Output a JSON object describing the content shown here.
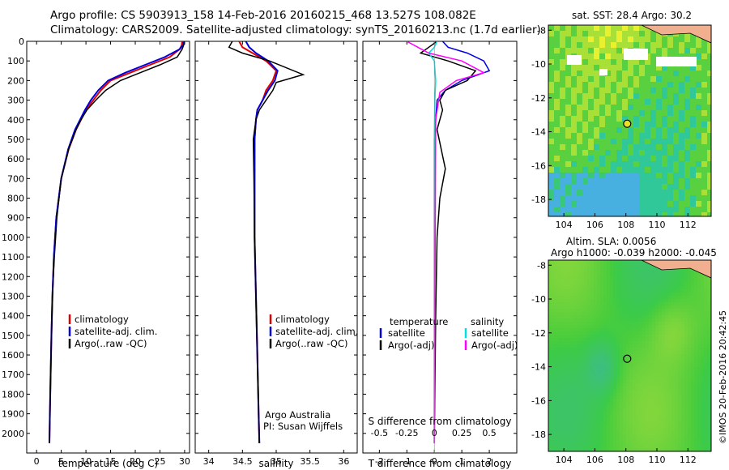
{
  "header": {
    "line1": "Argo profile: CS 5903913_158 14-Feb-2016 20160215_468 13.527S 108.082E",
    "line2": "Climatology: CARS2009. Satellite-adjusted climatology: synTS_20160213.nc (1.7d earlier)"
  },
  "side_text": "©IMOS 20-Feb-2016 20:42:45",
  "colors": {
    "climatology": "#e00000",
    "satellite": "#0000e0",
    "argo": "#000000",
    "salinity_satellite": "#00e0e0",
    "salinity_argo": "#ff00ff"
  },
  "chart_data": [
    {
      "type": "line",
      "xlabel": "temperature (deg C)",
      "ylabel": "",
      "xlim": [
        -2,
        31
      ],
      "ylim": [
        2100,
        0
      ],
      "xticks": [
        0,
        5,
        10,
        15,
        20,
        25,
        30
      ],
      "yticks": [
        0,
        100,
        200,
        300,
        400,
        500,
        600,
        700,
        800,
        900,
        1000,
        1100,
        1200,
        1300,
        1400,
        1500,
        1600,
        1700,
        1800,
        1900,
        2000
      ],
      "legend": [
        "climatology",
        "satellite-adj. clim.",
        "Argo(..raw -QC)"
      ],
      "series": [
        {
          "name": "climatology",
          "x": [
            29.5,
            29.4,
            29,
            27,
            23,
            19,
            15,
            13,
            11.5,
            10,
            9,
            8,
            6.5,
            5,
            4,
            3.5,
            3.2,
            3,
            2.85,
            2.7,
            2.6
          ],
          "y": [
            0,
            20,
            40,
            80,
            120,
            160,
            200,
            250,
            300,
            350,
            400,
            450,
            550,
            700,
            900,
            1100,
            1300,
            1500,
            1700,
            1900,
            2050
          ]
        },
        {
          "name": "satellite-adj. clim.",
          "x": [
            29.8,
            29.7,
            29,
            26,
            22,
            18,
            14.5,
            12.5,
            11,
            9.8,
            8.8,
            7.8,
            6.4,
            5,
            4,
            3.5,
            3.2,
            3,
            2.85,
            2.7,
            2.6
          ],
          "y": [
            0,
            20,
            40,
            80,
            120,
            160,
            200,
            250,
            300,
            350,
            400,
            450,
            550,
            700,
            900,
            1100,
            1300,
            1500,
            1700,
            1900,
            2050
          ]
        },
        {
          "name": "Argo(..raw -QC)",
          "x": [
            30,
            29.8,
            29.5,
            28.5,
            25,
            21,
            17,
            14,
            12,
            10.2,
            9,
            8,
            6.5,
            5,
            4.1,
            3.6,
            3.2,
            3,
            2.85,
            2.7,
            2.6
          ],
          "y": [
            5,
            20,
            40,
            80,
            120,
            160,
            200,
            250,
            300,
            350,
            400,
            450,
            550,
            700,
            900,
            1100,
            1300,
            1500,
            1700,
            1900,
            2050
          ]
        }
      ]
    },
    {
      "type": "line",
      "xlabel": "salinity",
      "xlim": [
        33.8,
        36.2
      ],
      "ylim": [
        2100,
        0
      ],
      "xticks": [
        34,
        34.5,
        35,
        35.5,
        36
      ],
      "xticklabels": [
        "34",
        "34.5",
        "35",
        "35.5",
        "36"
      ],
      "legend": [
        "climatology",
        "satellite-adj. clim.",
        "Argo(..raw -QC)"
      ],
      "annotation": [
        "Argo Australia",
        "PI: Susan Wijffels"
      ],
      "series": [
        {
          "name": "climatology",
          "x": [
            34.45,
            34.5,
            34.65,
            34.85,
            35.0,
            34.95,
            34.85,
            34.8,
            34.72,
            34.7,
            34.68,
            34.68,
            34.68,
            34.7,
            34.72,
            34.74,
            34.75
          ],
          "y": [
            0,
            30,
            60,
            100,
            150,
            200,
            250,
            300,
            350,
            400,
            500,
            700,
            1000,
            1300,
            1600,
            1900,
            2050
          ]
        },
        {
          "name": "satellite-adj. clim.",
          "x": [
            34.55,
            34.6,
            34.7,
            34.88,
            35.02,
            34.98,
            34.88,
            34.8,
            34.72,
            34.7,
            34.68,
            34.68,
            34.68,
            34.7,
            34.72,
            34.74,
            34.75
          ],
          "y": [
            0,
            30,
            60,
            100,
            150,
            200,
            250,
            300,
            350,
            400,
            500,
            700,
            1000,
            1300,
            1600,
            1900,
            2050
          ]
        },
        {
          "name": "Argo(..raw -QC)",
          "x": [
            34.35,
            34.3,
            34.5,
            34.9,
            35.4,
            35.0,
            34.95,
            34.85,
            34.75,
            34.7,
            34.66,
            34.67,
            34.68,
            34.7,
            34.72,
            34.74,
            34.75
          ],
          "y": [
            0,
            30,
            60,
            100,
            170,
            210,
            250,
            300,
            350,
            400,
            500,
            700,
            1000,
            1300,
            1600,
            1900,
            2050
          ]
        }
      ]
    },
    {
      "type": "line",
      "xlabel": "T difference from climatology",
      "xlabel_top": "S difference from climatology",
      "xlim": [
        -2.6,
        3.0
      ],
      "ylim": [
        2100,
        0
      ],
      "xticks": [
        -2,
        -1,
        0,
        1,
        2
      ],
      "xticks_top": [
        -0.5,
        -0.25,
        0,
        0.25,
        0.5
      ],
      "xticklabels_top": [
        "-0.5",
        "-0.25",
        "0",
        "0.25",
        "0.5"
      ],
      "legend": [
        "temperature",
        "satellite",
        "Argo(-adj)",
        "salinity",
        "satellite",
        "Argo(-adj)"
      ],
      "series": [
        {
          "name": "temperature satellite",
          "x": [
            0.3,
            0.5,
            1.2,
            1.8,
            2.0,
            1.0,
            0.4,
            0.1,
            0.05,
            0,
            0,
            0,
            0,
            0
          ],
          "y": [
            0,
            30,
            60,
            100,
            150,
            200,
            250,
            300,
            400,
            500,
            800,
            1200,
            1600,
            2050
          ]
        },
        {
          "name": "temperature Argo(-adj)",
          "x": [
            0.1,
            -0.2,
            -0.5,
            0.5,
            1.5,
            1.2,
            0.4,
            0.2,
            0.3,
            0.1,
            0.4,
            0.2,
            0.1,
            0.05,
            0
          ],
          "y": [
            0,
            30,
            60,
            100,
            150,
            200,
            250,
            300,
            350,
            450,
            650,
            800,
            1000,
            1400,
            2050
          ]
        },
        {
          "name": "salinity satellite",
          "x": [
            0.1,
            0.0,
            -0.2,
            0.0,
            0.05,
            0.02,
            0,
            0,
            0
          ],
          "y": [
            0,
            30,
            60,
            100,
            200,
            300,
            500,
            1200,
            2050
          ]
        },
        {
          "name": "salinity Argo(-adj)",
          "x": [
            -1.0,
            -0.6,
            -0.2,
            1.0,
            1.8,
            0.8,
            0.2,
            0.05,
            0
          ],
          "y": [
            0,
            30,
            60,
            100,
            160,
            200,
            260,
            400,
            2050
          ]
        }
      ]
    },
    {
      "type": "heatmap",
      "title": "sat. SST: 28.4  Argo: 30.2",
      "xlim": [
        103,
        113.5
      ],
      "ylim": [
        -19,
        -7.7
      ],
      "xticks": [
        104,
        106,
        108,
        110,
        112
      ],
      "yticks": [
        -8,
        -10,
        -12,
        -14,
        -16,
        -18
      ],
      "marker": [
        108.082,
        -13.527
      ]
    },
    {
      "type": "heatmap",
      "title": "Altim. SLA: 0.0056",
      "subtitle": "Argo h1000: -0.039 h2000: -0.045",
      "xlim": [
        103,
        113.5
      ],
      "ylim": [
        -19,
        -7.7
      ],
      "xticks": [
        104,
        106,
        108,
        110,
        112
      ],
      "yticks": [
        -8,
        -10,
        -12,
        -14,
        -16,
        -18
      ],
      "marker": [
        108.082,
        -13.527
      ]
    }
  ]
}
